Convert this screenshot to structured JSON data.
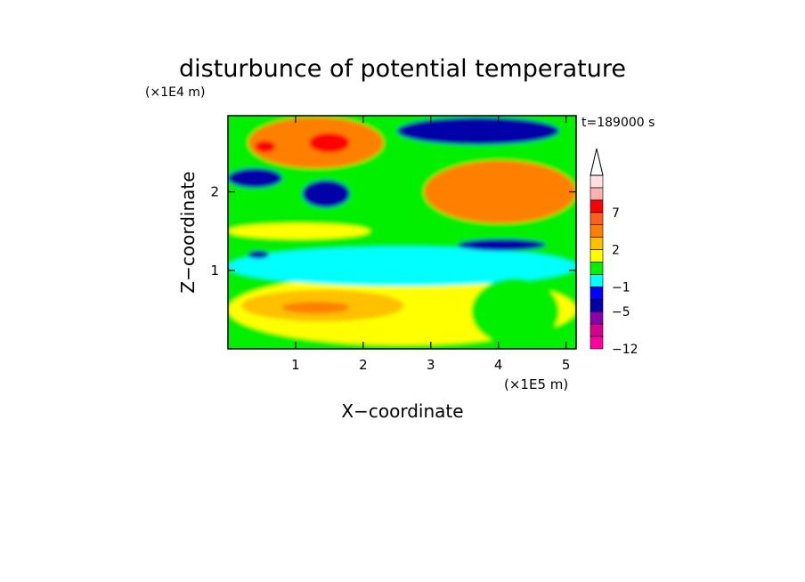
{
  "chart_data": {
    "type": "heatmap",
    "title": "disturbunce of potential temperature",
    "time_label": "t=189000 s",
    "xlabel": "X−coordinate",
    "ylabel": "Z−coordinate",
    "x_scale_label": "(×1E5 m)",
    "y_scale_label": "(×1E4 m)",
    "xlim": [
      0,
      5.15
    ],
    "ylim": [
      0,
      2.97
    ],
    "x_ticks": [
      {
        "value": 1,
        "label": "1"
      },
      {
        "value": 2,
        "label": "2"
      },
      {
        "value": 3,
        "label": "3"
      },
      {
        "value": 4,
        "label": "4"
      },
      {
        "value": 5,
        "label": "5"
      }
    ],
    "y_ticks": [
      {
        "value": 1,
        "label": "1"
      },
      {
        "value": 2,
        "label": "2"
      }
    ],
    "colorbar": {
      "levels": [
        -12,
        -10,
        -8,
        -5,
        -3,
        -1,
        0,
        1,
        2,
        3,
        5,
        7,
        9,
        12
      ],
      "colors": [
        "#ff00a0",
        "#d60090",
        "#8a00aa",
        "#0000a8",
        "#0000ff",
        "#00ffff",
        "#00f000",
        "#ffff00",
        "#ffc000",
        "#ff8000",
        "#ff6020",
        "#ff0000",
        "#ffb0b0",
        "#ffe0e0"
      ],
      "tick_labels": [
        {
          "level": -12,
          "label": "−12"
        },
        {
          "level": -5,
          "label": "−5"
        },
        {
          "level": -1,
          "label": "−1"
        },
        {
          "level": 2,
          "label": "2"
        },
        {
          "level": 7,
          "label": "7"
        }
      ],
      "extend": "max"
    },
    "field_regions": [
      {
        "x": [
          0,
          5.15
        ],
        "z": [
          0,
          2.97
        ],
        "value": 0.3
      },
      {
        "x": [
          0,
          5.15
        ],
        "z": [
          0.05,
          0.95
        ],
        "value": 1.5
      },
      {
        "x": [
          0.2,
          2.6
        ],
        "z": [
          0.35,
          0.75
        ],
        "value": 2.5
      },
      {
        "x": [
          0.8,
          1.8
        ],
        "z": [
          0.45,
          0.6
        ],
        "value": 3.5
      },
      {
        "x": [
          0,
          5.15
        ],
        "z": [
          0.8,
          1.3
        ],
        "value": -0.5
      },
      {
        "x": [
          3.4,
          4.7
        ],
        "z": [
          1.25,
          1.4
        ],
        "value": -4
      },
      {
        "x": [
          0,
          2.1
        ],
        "z": [
          1.4,
          1.6
        ],
        "value": 1.5
      },
      {
        "x": [
          0.3,
          0.6
        ],
        "z": [
          1.15,
          1.25
        ],
        "value": -4
      },
      {
        "x": [
          1.1,
          1.8
        ],
        "z": [
          1.8,
          2.15
        ],
        "value": -4
      },
      {
        "x": [
          0,
          0.8
        ],
        "z": [
          2.05,
          2.3
        ],
        "value": -4
      },
      {
        "x": [
          0.3,
          2.3
        ],
        "z": [
          2.3,
          2.95
        ],
        "value": 3.5
      },
      {
        "x": [
          1.2,
          1.8
        ],
        "z": [
          2.5,
          2.75
        ],
        "value": 7.5
      },
      {
        "x": [
          0.4,
          0.7
        ],
        "z": [
          2.5,
          2.65
        ],
        "value": 7.5
      },
      {
        "x": [
          2.5,
          4.9
        ],
        "z": [
          2.6,
          2.95
        ],
        "value": -4
      },
      {
        "x": [
          2.9,
          5.15
        ],
        "z": [
          1.6,
          2.4
        ],
        "value": 3.5
      },
      {
        "x": [
          3.7,
          5.0
        ],
        "z": [
          2.05,
          2.3
        ],
        "value": 4.5
      },
      {
        "x": [
          3.6,
          4.9
        ],
        "z": [
          0.05,
          0.9
        ],
        "value": 0.5
      }
    ]
  }
}
